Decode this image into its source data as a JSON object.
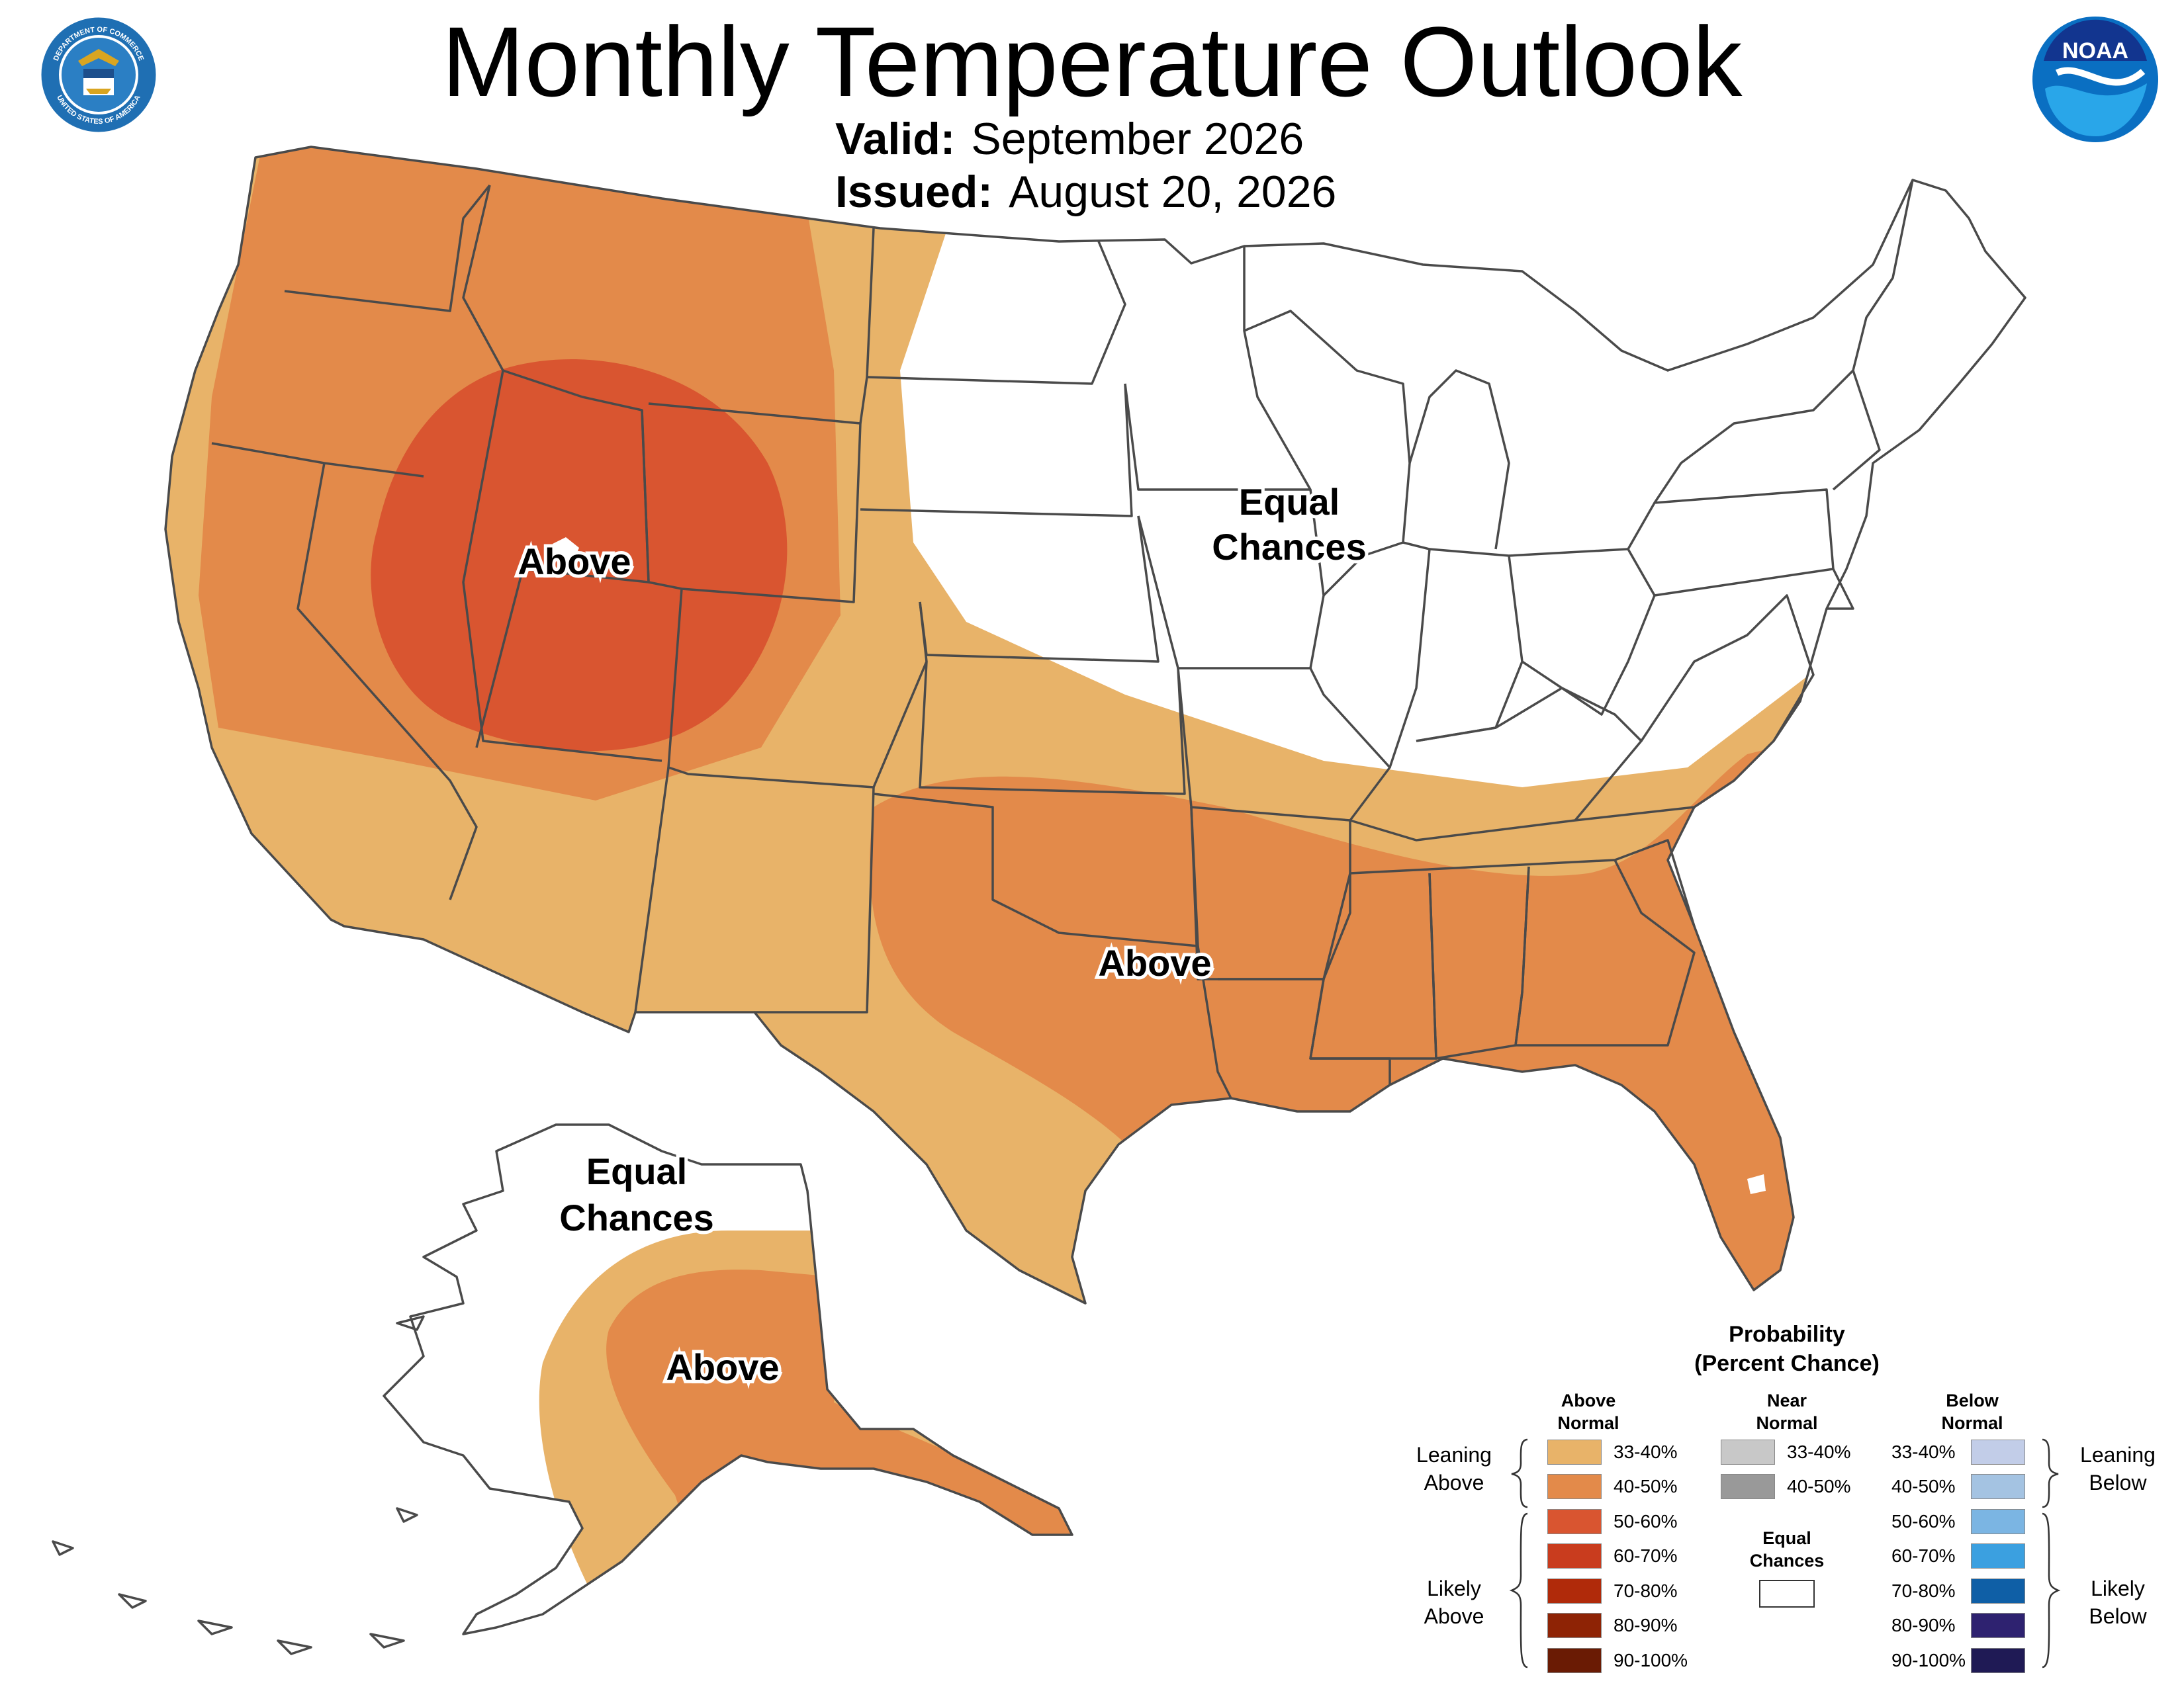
{
  "header": {
    "title": "Monthly Temperature Outlook",
    "valid_label": "Valid:",
    "valid_value": "September 2026",
    "issued_label": "Issued:",
    "issued_value": "August 20, 2026"
  },
  "logos": {
    "left": "department-of-commerce-seal-icon",
    "left_text_top": "DEPARTMENT OF COMMERCE",
    "left_text_bottom": "UNITED STATES OF AMERICA",
    "right": "noaa-logo-icon",
    "right_text": "NOAA"
  },
  "map": {
    "labels": {
      "west_above": "Above",
      "south_above": "Above",
      "central_ec_1": "Equal",
      "central_ec_2": "Chances",
      "alaska_ec_1": "Equal",
      "alaska_ec_2": "Chances",
      "alaska_above": "Above"
    },
    "colors": {
      "above_33_40": "#E8B369",
      "above_40_50": "#E38A4A",
      "above_50_60": "#D95530",
      "equal_chances": "#FFFFFF",
      "state_lines": "#4A4A4A"
    }
  },
  "legend": {
    "title_1": "Probability",
    "title_2": "(Percent Chance)",
    "above_head_1": "Above",
    "above_head_2": "Normal",
    "near_head_1": "Near",
    "near_head_2": "Normal",
    "below_head_1": "Below",
    "below_head_2": "Normal",
    "above": [
      {
        "label": "33-40%",
        "color": "#E8B369"
      },
      {
        "label": "40-50%",
        "color": "#E38A4A"
      },
      {
        "label": "50-60%",
        "color": "#D95530"
      },
      {
        "label": "60-70%",
        "color": "#C93C1E"
      },
      {
        "label": "70-80%",
        "color": "#B02A0A"
      },
      {
        "label": "80-90%",
        "color": "#8E2305"
      },
      {
        "label": "90-100%",
        "color": "#6A1B04"
      }
    ],
    "near": [
      {
        "label": "33-40%",
        "color": "#C8C8C8"
      },
      {
        "label": "40-50%",
        "color": "#999999"
      }
    ],
    "below": [
      {
        "label": "33-40%",
        "color": "#C2CDE8"
      },
      {
        "label": "40-50%",
        "color": "#A4C3E2"
      },
      {
        "label": "50-60%",
        "color": "#7BB5E3"
      },
      {
        "label": "60-70%",
        "color": "#3BA0E0"
      },
      {
        "label": "70-80%",
        "color": "#0F5FA6"
      },
      {
        "label": "80-90%",
        "color": "#2E2270"
      },
      {
        "label": "90-100%",
        "color": "#1F1A55"
      }
    ],
    "equal_chances_1": "Equal",
    "equal_chances_2": "Chances",
    "leaning_above_1": "Leaning",
    "leaning_above_2": "Above",
    "likely_above_1": "Likely",
    "likely_above_2": "Above",
    "leaning_below_1": "Leaning",
    "leaning_below_2": "Below",
    "likely_below_1": "Likely",
    "likely_below_2": "Below"
  }
}
